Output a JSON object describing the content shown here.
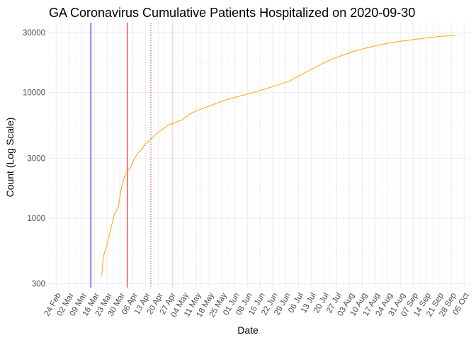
{
  "chart_data": {
    "type": "line",
    "title": "GA Coronavirus Cumulative Patients Hospitalized on 2020-09-30",
    "xlabel": "Date",
    "ylabel": "Count (Log Scale)",
    "y_scale": "log10",
    "ylim": [
      280,
      36000
    ],
    "xlim": [
      "2020-02-20",
      "2020-10-08"
    ],
    "y_ticks": [
      300,
      1000,
      3000,
      10000,
      30000
    ],
    "x_ticks": [
      "2020-02-24",
      "2020-03-02",
      "2020-03-09",
      "2020-03-16",
      "2020-03-23",
      "2020-03-30",
      "2020-04-06",
      "2020-04-13",
      "2020-04-20",
      "2020-04-27",
      "2020-05-04",
      "2020-05-11",
      "2020-05-18",
      "2020-05-25",
      "2020-06-01",
      "2020-06-08",
      "2020-06-15",
      "2020-06-22",
      "2020-06-29",
      "2020-07-06",
      "2020-07-13",
      "2020-07-20",
      "2020-07-27",
      "2020-08-03",
      "2020-08-10",
      "2020-08-17",
      "2020-08-24",
      "2020-08-31",
      "2020-09-07",
      "2020-09-14",
      "2020-09-21",
      "2020-09-28",
      "2020-10-05"
    ],
    "x_tick_labels": [
      "24 Feb",
      "02 Mar",
      "09 Mar",
      "16 Mar",
      "23 Mar",
      "30 Mar",
      "06 Apr",
      "13 Apr",
      "20 Apr",
      "27 Apr",
      "04 May",
      "11 May",
      "18 May",
      "25 May",
      "01 Jun",
      "08 Jun",
      "15 Jun",
      "22 Jun",
      "29 Jun",
      "06 Jul",
      "13 Jul",
      "20 Jul",
      "27 Jul",
      "03 Aug",
      "10 Aug",
      "17 Aug",
      "24 Aug",
      "31 Aug",
      "07 Sep",
      "14 Sep",
      "21 Sep",
      "28 Sep",
      "05 Oct"
    ],
    "grid": true,
    "legend": "none",
    "series": [
      {
        "color": "#FFA500",
        "x": [
          "2020-03-20",
          "2020-03-21",
          "2020-03-23",
          "2020-03-25",
          "2020-03-27",
          "2020-03-29",
          "2020-03-31",
          "2020-04-02",
          "2020-04-03",
          "2020-04-05",
          "2020-04-07",
          "2020-04-09",
          "2020-04-11",
          "2020-04-13",
          "2020-04-15",
          "2020-04-17",
          "2020-04-20",
          "2020-04-23",
          "2020-04-26",
          "2020-04-29",
          "2020-05-03",
          "2020-05-07",
          "2020-05-12",
          "2020-05-17",
          "2020-05-22",
          "2020-05-28",
          "2020-06-03",
          "2020-06-10",
          "2020-06-17",
          "2020-06-24",
          "2020-07-01",
          "2020-07-08",
          "2020-07-15",
          "2020-07-22",
          "2020-07-29",
          "2020-08-05",
          "2020-08-12",
          "2020-08-19",
          "2020-08-26",
          "2020-09-02",
          "2020-09-09",
          "2020-09-16",
          "2020-09-23",
          "2020-09-30"
        ],
        "y": [
          350,
          500,
          620,
          820,
          1080,
          1200,
          1800,
          2250,
          2350,
          2550,
          3000,
          3300,
          3550,
          3900,
          4150,
          4400,
          4800,
          5200,
          5550,
          5750,
          6050,
          6700,
          7250,
          7700,
          8200,
          8800,
          9300,
          9900,
          10600,
          11400,
          12300,
          14000,
          15800,
          17800,
          19500,
          21200,
          22600,
          23900,
          25000,
          25800,
          26600,
          27400,
          28100,
          28400
        ]
      }
    ],
    "reference_lines": [
      {
        "date": "2020-03-14",
        "color": "#0000FF",
        "style": "solid"
      },
      {
        "date": "2020-04-03",
        "color": "#FF0000",
        "style": "solid"
      },
      {
        "date": "2020-04-16",
        "color": "#D2413A",
        "style": "dotted"
      },
      {
        "date": "2020-04-28",
        "color": "#FFC0CB",
        "style": "solid"
      },
      {
        "date": "2020-05-13",
        "color": "#E8C8CC",
        "style": "dotted"
      }
    ]
  }
}
